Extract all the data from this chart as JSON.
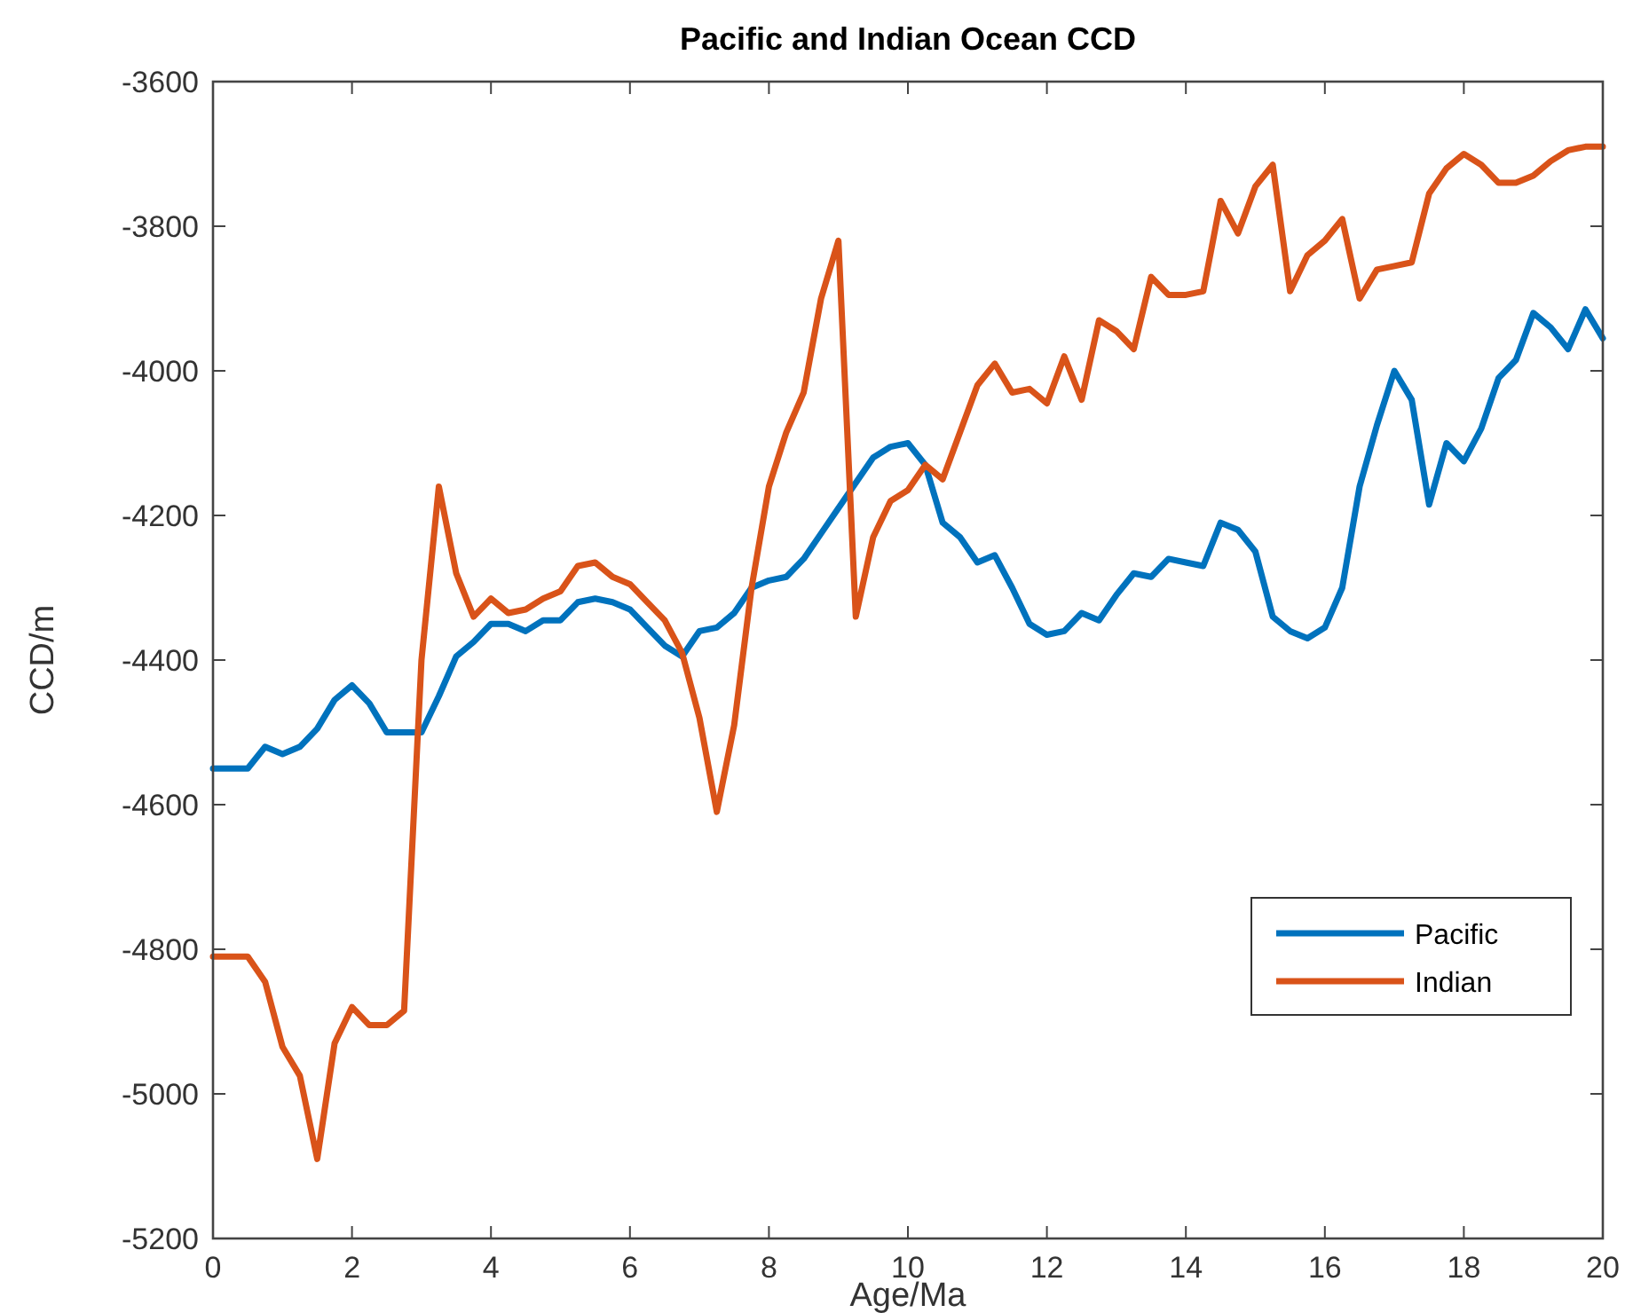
{
  "chart_data": {
    "type": "line",
    "title": "Pacific and Indian Ocean CCD",
    "xlabel": "Age/Ma",
    "ylabel": "CCD/m",
    "x": [
      0,
      0.25,
      0.5,
      0.75,
      1,
      1.25,
      1.5,
      1.75,
      2,
      2.25,
      2.5,
      2.75,
      3,
      3.25,
      3.5,
      3.75,
      4,
      4.25,
      4.5,
      4.75,
      5,
      5.25,
      5.5,
      5.75,
      6,
      6.25,
      6.5,
      6.75,
      7,
      7.25,
      7.5,
      7.75,
      8,
      8.25,
      8.5,
      8.75,
      9,
      9.25,
      9.5,
      9.75,
      10,
      10.25,
      10.5,
      10.75,
      11,
      11.25,
      11.5,
      11.75,
      12,
      12.25,
      12.5,
      12.75,
      13,
      13.25,
      13.5,
      13.75,
      14,
      14.25,
      14.5,
      14.75,
      15,
      15.25,
      15.5,
      15.75,
      16,
      16.25,
      16.5,
      16.75,
      17,
      17.25,
      17.5,
      17.75,
      18,
      18.25,
      18.5,
      18.75,
      19,
      19.25,
      19.5,
      19.75,
      20
    ],
    "series": [
      {
        "name": "Pacific",
        "color": "#0072bd",
        "values": [
          -4550,
          -4550,
          -4550,
          -4520,
          -4530,
          -4520,
          -4495,
          -4455,
          -4435,
          -4460,
          -4500,
          -4500,
          -4500,
          -4450,
          -4395,
          -4375,
          -4350,
          -4350,
          -4360,
          -4345,
          -4345,
          -4320,
          -4315,
          -4320,
          -4330,
          -4355,
          -4380,
          -4395,
          -4360,
          -4355,
          -4335,
          -4300,
          -4290,
          -4285,
          -4260,
          -4225,
          -4190,
          -4155,
          -4120,
          -4105,
          -4100,
          -4130,
          -4210,
          -4230,
          -4265,
          -4255,
          -4300,
          -4350,
          -4365,
          -4360,
          -4335,
          -4345,
          -4310,
          -4280,
          -4285,
          -4260,
          -4265,
          -4270,
          -4210,
          -4220,
          -4250,
          -4340,
          -4360,
          -4370,
          -4355,
          -4300,
          -4160,
          -4075,
          -4000,
          -4040,
          -4185,
          -4100,
          -4125,
          -4080,
          -4010,
          -3985,
          -3920,
          -3940,
          -3970,
          -3915,
          -3955
        ]
      },
      {
        "name": "Indian",
        "color": "#d95319",
        "values": [
          -4810,
          -4810,
          -4810,
          -4845,
          -4935,
          -4975,
          -5090,
          -4930,
          -4880,
          -4905,
          -4905,
          -4885,
          -4400,
          -4160,
          -4280,
          -4340,
          -4315,
          -4335,
          -4330,
          -4315,
          -4305,
          -4270,
          -4265,
          -4285,
          -4295,
          -4320,
          -4345,
          -4390,
          -4480,
          -4610,
          -4490,
          -4300,
          -4160,
          -4085,
          -4030,
          -3900,
          -3820,
          -4340,
          -4230,
          -4180,
          -4165,
          -4130,
          -4150,
          -4085,
          -4020,
          -3990,
          -4030,
          -4025,
          -4045,
          -3980,
          -4040,
          -3930,
          -3945,
          -3970,
          -3870,
          -3895,
          -3895,
          -3890,
          -3765,
          -3810,
          -3745,
          -3715,
          -3890,
          -3840,
          -3820,
          -3790,
          -3900,
          -3860,
          -3855,
          -3850,
          -3755,
          -3720,
          -3700,
          -3715,
          -3740,
          -3740,
          -3730,
          -3710,
          -3695,
          -3690,
          -3690
        ]
      }
    ],
    "xlim": [
      0,
      20
    ],
    "xticks": [
      0,
      2,
      4,
      6,
      8,
      10,
      12,
      14,
      16,
      18,
      20
    ],
    "ylim": [
      -5200,
      -3600
    ],
    "yticks": [
      -5200,
      -5000,
      -4800,
      -4600,
      -4400,
      -4200,
      -4000,
      -3800,
      -3600
    ],
    "grid": false,
    "legend": "bottom right",
    "marker": "none",
    "line_style": "solid"
  }
}
